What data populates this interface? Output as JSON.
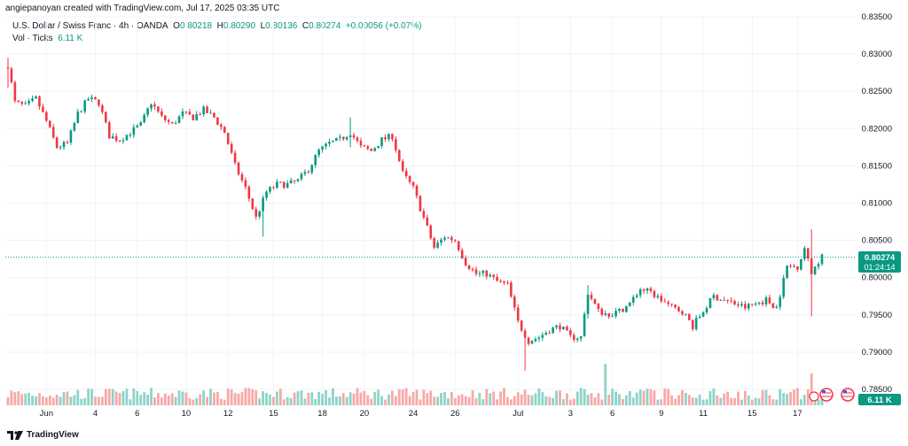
{
  "attribution": "angiepanoyan created with TradingView.com, Jul 17, 2025 03:35 UTC",
  "legend": {
    "symbol": "U.S. Dollar / Swiss Franc · 4h · OANDA",
    "open_label": "O",
    "open": "0.80218",
    "high_label": "H",
    "high": "0.80290",
    "low_label": "L",
    "low": "0.80136",
    "close_label": "C",
    "close": "0.80274",
    "change": "+0.00056 (+0.07%)",
    "vol_label": "Vol · Ticks",
    "vol_value": "6.11 K"
  },
  "price_badge": {
    "price": "0.80274",
    "countdown": "01:24:14"
  },
  "vol_badge": "6.11 K",
  "brand": "TradingView",
  "colors": {
    "up": "#089981",
    "down": "#F23645",
    "vol_up": "#8FD3C8",
    "vol_down": "#F7A9A7",
    "grid": "#F0F3FA",
    "axis_text": "#131722"
  },
  "icons": [
    "tradingview-logo-icon",
    "us-flag-icon",
    "swiss-flag-icon",
    "calendar-event-icon"
  ],
  "chart_data": {
    "type": "candlestick",
    "timeframe": "4h",
    "y_ticks": [
      "0.83500",
      "0.83000",
      "0.82500",
      "0.82000",
      "0.81500",
      "0.81000",
      "0.80500",
      "0.80000",
      "0.79500",
      "0.79000",
      "0.78500"
    ],
    "y_range": [
      0.785,
      0.835
    ],
    "x_ticks": [
      {
        "label": "Jun",
        "bar": 11
      },
      {
        "label": "4",
        "bar": 25
      },
      {
        "label": "6",
        "bar": 37
      },
      {
        "label": "10",
        "bar": 51
      },
      {
        "label": "12",
        "bar": 63
      },
      {
        "label": "15",
        "bar": 76
      },
      {
        "label": "18",
        "bar": 90
      },
      {
        "label": "20",
        "bar": 102
      },
      {
        "label": "24",
        "bar": 116
      },
      {
        "label": "26",
        "bar": 128
      },
      {
        "label": "Jul",
        "bar": 146
      },
      {
        "label": "3",
        "bar": 161
      },
      {
        "label": "6",
        "bar": 173
      },
      {
        "label": "9",
        "bar": 187
      },
      {
        "label": "11",
        "bar": 199
      },
      {
        "label": "15",
        "bar": 213
      },
      {
        "label": "17",
        "bar": 226
      }
    ],
    "current_price": 0.80274,
    "close_path": [
      [
        0,
        0.8285
      ],
      [
        2,
        0.8235
      ],
      [
        5,
        0.823
      ],
      [
        8,
        0.824
      ],
      [
        11,
        0.821
      ],
      [
        14,
        0.8175
      ],
      [
        17,
        0.818
      ],
      [
        20,
        0.822
      ],
      [
        23,
        0.824
      ],
      [
        26,
        0.8235
      ],
      [
        29,
        0.819
      ],
      [
        32,
        0.8185
      ],
      [
        35,
        0.8195
      ],
      [
        38,
        0.8205
      ],
      [
        41,
        0.8235
      ],
      [
        44,
        0.8215
      ],
      [
        47,
        0.8205
      ],
      [
        50,
        0.822
      ],
      [
        53,
        0.8215
      ],
      [
        56,
        0.8225
      ],
      [
        59,
        0.8215
      ],
      [
        62,
        0.8195
      ],
      [
        65,
        0.815
      ],
      [
        68,
        0.812
      ],
      [
        71,
        0.808
      ],
      [
        74,
        0.8115
      ],
      [
        77,
        0.8125
      ],
      [
        80,
        0.8125
      ],
      [
        83,
        0.813
      ],
      [
        86,
        0.8145
      ],
      [
        89,
        0.817
      ],
      [
        92,
        0.818
      ],
      [
        95,
        0.8185
      ],
      [
        98,
        0.8195
      ],
      [
        101,
        0.8175
      ],
      [
        104,
        0.817
      ],
      [
        107,
        0.8185
      ],
      [
        110,
        0.819
      ],
      [
        113,
        0.814
      ],
      [
        116,
        0.812
      ],
      [
        119,
        0.808
      ],
      [
        122,
        0.804
      ],
      [
        125,
        0.8055
      ],
      [
        128,
        0.805
      ],
      [
        131,
        0.802
      ],
      [
        134,
        0.8005
      ],
      [
        137,
        0.8005
      ],
      [
        140,
        0.7995
      ],
      [
        143,
        0.799
      ],
      [
        146,
        0.794
      ],
      [
        149,
        0.7915
      ],
      [
        152,
        0.792
      ],
      [
        155,
        0.793
      ],
      [
        158,
        0.7935
      ],
      [
        161,
        0.792
      ],
      [
        164,
        0.792
      ],
      [
        166,
        0.798
      ],
      [
        169,
        0.7955
      ],
      [
        172,
        0.795
      ],
      [
        175,
        0.7955
      ],
      [
        178,
        0.7965
      ],
      [
        181,
        0.7985
      ],
      [
        184,
        0.798
      ],
      [
        187,
        0.797
      ],
      [
        190,
        0.796
      ],
      [
        193,
        0.7955
      ],
      [
        196,
        0.7935
      ],
      [
        199,
        0.7955
      ],
      [
        202,
        0.7975
      ],
      [
        205,
        0.797
      ],
      [
        208,
        0.7965
      ],
      [
        211,
        0.796
      ],
      [
        214,
        0.7965
      ],
      [
        217,
        0.797
      ],
      [
        220,
        0.796
      ],
      [
        223,
        0.8015
      ],
      [
        226,
        0.8015
      ],
      [
        228,
        0.804
      ],
      [
        230,
        0.8005
      ],
      [
        232,
        0.8022
      ],
      [
        233,
        0.80274
      ]
    ],
    "spikes": [
      {
        "bar": 0,
        "high": 0.8295,
        "low": 0.8255
      },
      {
        "bar": 73,
        "high": 0.8075,
        "low": 0.8055
      },
      {
        "bar": 98,
        "high": 0.8215,
        "low": 0.8175
      },
      {
        "bar": 148,
        "high": 0.793,
        "low": 0.7875
      },
      {
        "bar": 166,
        "high": 0.799,
        "low": 0.7945
      },
      {
        "bar": 230,
        "high": 0.8065,
        "low": 0.7948
      }
    ],
    "volume_spikes": [
      {
        "bar": 171,
        "value": 2.6
      },
      {
        "bar": 230,
        "value": 2.0
      }
    ]
  }
}
